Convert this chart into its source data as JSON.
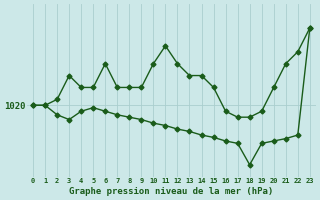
{
  "title": "Graphe pression niveau de la mer (hPa)",
  "background_color": "#cce8e8",
  "grid_color": "#aacece",
  "line_color": "#1a5c1a",
  "x_labels": [
    "0",
    "1",
    "2",
    "3",
    "4",
    "5",
    "6",
    "7",
    "8",
    "9",
    "10",
    "11",
    "12",
    "13",
    "14",
    "15",
    "16",
    "17",
    "18",
    "19",
    "20",
    "21",
    "22",
    "23"
  ],
  "y_label_value": 1020,
  "series1_x": [
    0,
    1,
    2,
    3,
    4,
    5,
    6,
    7,
    8,
    9,
    10,
    11,
    12,
    13,
    14,
    15,
    16,
    17,
    18,
    19,
    20,
    21,
    22,
    23
  ],
  "series1_y": [
    1020.0,
    1020.0,
    1020.5,
    1022.5,
    1021.5,
    1021.5,
    1023.5,
    1021.5,
    1021.5,
    1021.5,
    1023.5,
    1025.0,
    1023.5,
    1022.5,
    1022.5,
    1021.5,
    1019.5,
    1019.0,
    1019.0,
    1019.5,
    1021.5,
    1023.5,
    1024.5,
    1026.5
  ],
  "series2_x": [
    0,
    1,
    2,
    3,
    4,
    5,
    6,
    7,
    8,
    9,
    10,
    11,
    12,
    13,
    14,
    15,
    16,
    17,
    18,
    19,
    20,
    21,
    22,
    23
  ],
  "series2_y": [
    1020.0,
    1020.0,
    1019.2,
    1018.8,
    1019.5,
    1019.8,
    1019.5,
    1019.2,
    1019.0,
    1018.8,
    1018.5,
    1018.3,
    1018.0,
    1017.8,
    1017.5,
    1017.3,
    1017.0,
    1016.8,
    1015.0,
    1016.8,
    1017.0,
    1017.2,
    1017.5,
    1026.5
  ],
  "ylim_min": 1014.0,
  "ylim_max": 1028.5,
  "marker": "D",
  "markersize": 2.5,
  "linewidth": 1.0,
  "xlabel_fontsize": 6.5,
  "xtick_fontsize": 5.0,
  "ytick_fontsize": 6.5
}
